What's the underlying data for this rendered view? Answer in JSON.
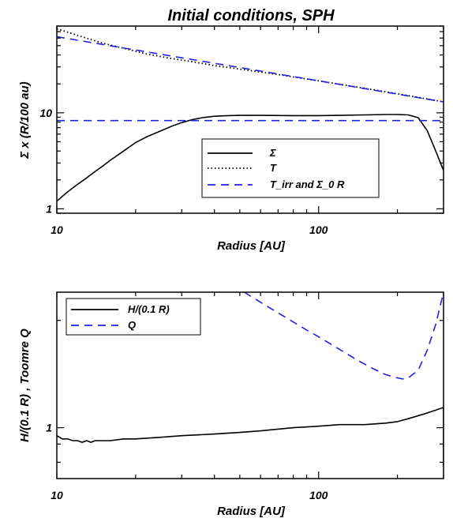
{
  "chart_data": [
    {
      "type": "line",
      "title": "Initial conditions, SPH",
      "xlabel": "Radius [AU]",
      "ylabel": "Σ x  (R/100 au)",
      "xscale": "log",
      "yscale": "log",
      "xlim": [
        10,
        300
      ],
      "ylim": [
        0.9,
        80
      ],
      "xticks": [
        {
          "value": 10,
          "label": "10"
        },
        {
          "value": 100,
          "label": "100"
        }
      ],
      "yticks": [
        {
          "value": 1,
          "label": "1"
        },
        {
          "value": 10,
          "label": "10"
        }
      ],
      "legend_position": "center-right",
      "series": [
        {
          "name": "Σ",
          "style": "solid",
          "color": "#000000",
          "x": [
            10,
            10.5,
            11,
            11.5,
            12,
            13,
            14,
            15,
            16,
            18,
            20,
            22,
            25,
            28,
            30,
            33,
            36,
            40,
            45,
            50,
            60,
            80,
            100,
            120,
            150,
            180,
            200,
            220,
            240,
            260,
            280,
            300
          ],
          "y": [
            1.2,
            1.35,
            1.5,
            1.65,
            1.8,
            2.1,
            2.45,
            2.8,
            3.2,
            4.0,
            4.9,
            5.6,
            6.5,
            7.4,
            7.9,
            8.5,
            8.9,
            9.2,
            9.35,
            9.4,
            9.4,
            9.35,
            9.35,
            9.4,
            9.5,
            9.6,
            9.6,
            9.5,
            8.9,
            6.5,
            4.0,
            2.5
          ]
        },
        {
          "name": "T",
          "style": "dotted",
          "color": "#000000",
          "x": [
            10,
            12,
            15,
            18,
            22,
            27,
            33,
            40,
            50,
            70,
            100,
            150,
            200,
            300
          ],
          "y": [
            75,
            64,
            53,
            47,
            41,
            37,
            34,
            31,
            28.5,
            25,
            21.5,
            18,
            15.8,
            13
          ]
        },
        {
          "name": "T_irr and Σ_0 R",
          "style": "dashed",
          "color": "#2020e0",
          "x": [
            10,
            300
          ],
          "y": [
            62,
            13
          ]
        },
        {
          "name": "",
          "style": "dashed",
          "color": "#2020e0",
          "x": [
            10,
            300
          ],
          "y": [
            8.3,
            8.3
          ]
        }
      ]
    },
    {
      "type": "line",
      "title": "",
      "xlabel": "Radius [AU]",
      "ylabel": "H/(0.1 R) , Toomre Q",
      "xscale": "log",
      "yscale": "log",
      "xlim": [
        10,
        300
      ],
      "ylim": [
        0.72,
        2.4
      ],
      "xticks": [
        {
          "value": 10,
          "label": "10"
        },
        {
          "value": 100,
          "label": "100"
        }
      ],
      "yticks": [
        {
          "value": 1,
          "label": "1"
        }
      ],
      "legend_position": "top-left",
      "series": [
        {
          "name": "H/(0.1 R)",
          "style": "solid",
          "color": "#000000",
          "x": [
            10,
            10.5,
            11,
            11.5,
            12,
            12.5,
            13,
            13.5,
            14,
            15,
            16,
            18,
            20,
            25,
            30,
            40,
            50,
            60,
            80,
            100,
            120,
            150,
            180,
            200,
            220,
            250,
            280,
            300,
            300
          ],
          "y": [
            0.95,
            0.93,
            0.93,
            0.92,
            0.92,
            0.91,
            0.92,
            0.91,
            0.92,
            0.92,
            0.92,
            0.93,
            0.93,
            0.94,
            0.95,
            0.96,
            0.97,
            0.98,
            1.0,
            1.01,
            1.02,
            1.02,
            1.03,
            1.04,
            1.06,
            1.09,
            1.12,
            1.14,
            0.78
          ]
        },
        {
          "name": "Q",
          "style": "dashed",
          "color": "#2020e0",
          "x": [
            52,
            60,
            70,
            80,
            90,
            100,
            120,
            140,
            160,
            180,
            200,
            210,
            220,
            240,
            260,
            280,
            300
          ],
          "y": [
            2.4,
            2.25,
            2.1,
            1.98,
            1.88,
            1.8,
            1.66,
            1.55,
            1.47,
            1.41,
            1.38,
            1.37,
            1.38,
            1.45,
            1.65,
            1.95,
            2.4
          ]
        }
      ]
    }
  ]
}
